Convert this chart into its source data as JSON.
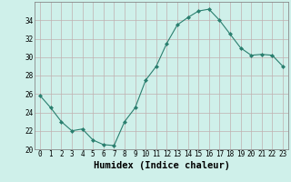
{
  "x": [
    0,
    1,
    2,
    3,
    4,
    5,
    6,
    7,
    8,
    9,
    10,
    11,
    12,
    13,
    14,
    15,
    16,
    17,
    18,
    19,
    20,
    21,
    22,
    23
  ],
  "y": [
    25.8,
    24.5,
    23.0,
    22.0,
    22.2,
    21.0,
    20.5,
    20.4,
    23.0,
    24.5,
    27.5,
    29.0,
    31.5,
    33.5,
    34.3,
    35.0,
    35.2,
    34.0,
    32.5,
    31.0,
    30.2,
    30.3,
    30.2,
    29.0
  ],
  "xlabel": "Humidex (Indice chaleur)",
  "ylim": [
    20,
    36
  ],
  "xlim": [
    -0.5,
    23.5
  ],
  "yticks": [
    20,
    22,
    24,
    26,
    28,
    30,
    32,
    34
  ],
  "xticks": [
    0,
    1,
    2,
    3,
    4,
    5,
    6,
    7,
    8,
    9,
    10,
    11,
    12,
    13,
    14,
    15,
    16,
    17,
    18,
    19,
    20,
    21,
    22,
    23
  ],
  "line_color": "#2a7f6f",
  "marker": "D",
  "marker_size": 2.0,
  "bg_color": "#cff0ea",
  "grid_color": "#c0b0b0",
  "tick_fontsize": 5.5,
  "xlabel_fontsize": 7.5
}
